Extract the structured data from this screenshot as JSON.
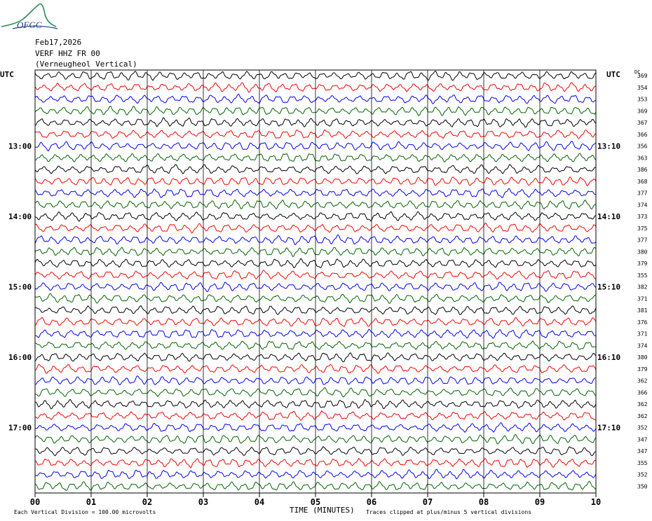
{
  "header": {
    "logo_text": "OFGC",
    "date": "Feb17,2026",
    "station": "VERF HHZ FR 00",
    "location": "(Verneugheol Vertical)"
  },
  "colors": {
    "trace": [
      "#000000",
      "#ff0000",
      "#0000ff",
      "#006400"
    ],
    "grid": "#000000"
  },
  "chart_data": {
    "type": "line",
    "title": "Feb17,2026",
    "subtitle": "VERF HHZ FR 00 (Verneugheol Vertical)",
    "xlabel": "TIME (MINUTES)",
    "ylabel_left": "UTC",
    "ylabel_right": "UTC",
    "dc_label": "DC",
    "x_ticks": [
      "00",
      "01",
      "02",
      "03",
      "04",
      "05",
      "06",
      "07",
      "08",
      "09",
      "10"
    ],
    "xlim": [
      0,
      10
    ],
    "left_time_labels": [
      {
        "row": 6,
        "label": "13:00"
      },
      {
        "row": 12,
        "label": "14:00"
      },
      {
        "row": 18,
        "label": "15:00"
      },
      {
        "row": 24,
        "label": "16:00"
      },
      {
        "row": 30,
        "label": "17:00"
      }
    ],
    "right_time_labels": [
      {
        "row": 6,
        "label": "13:10"
      },
      {
        "row": 12,
        "label": "14:10"
      },
      {
        "row": 18,
        "label": "15:10"
      },
      {
        "row": 24,
        "label": "16:10"
      },
      {
        "row": 30,
        "label": "17:10"
      }
    ],
    "traces_per_hour": 6,
    "trace_minutes": 10,
    "trace_count": 36,
    "dc_offsets": [
      369,
      354,
      353,
      369,
      367,
      366,
      356,
      363,
      386,
      368,
      377,
      374,
      373,
      375,
      377,
      380,
      379,
      355,
      382,
      371,
      381,
      376,
      371,
      374,
      380,
      379,
      362,
      366,
      362,
      362,
      352,
      347,
      347,
      355,
      352,
      350
    ],
    "footer_left": "Each Vertical Division =  100.00 microvolts",
    "footer_right": "Traces clipped at plus/minus 5 vertical divisions",
    "grid": true
  }
}
